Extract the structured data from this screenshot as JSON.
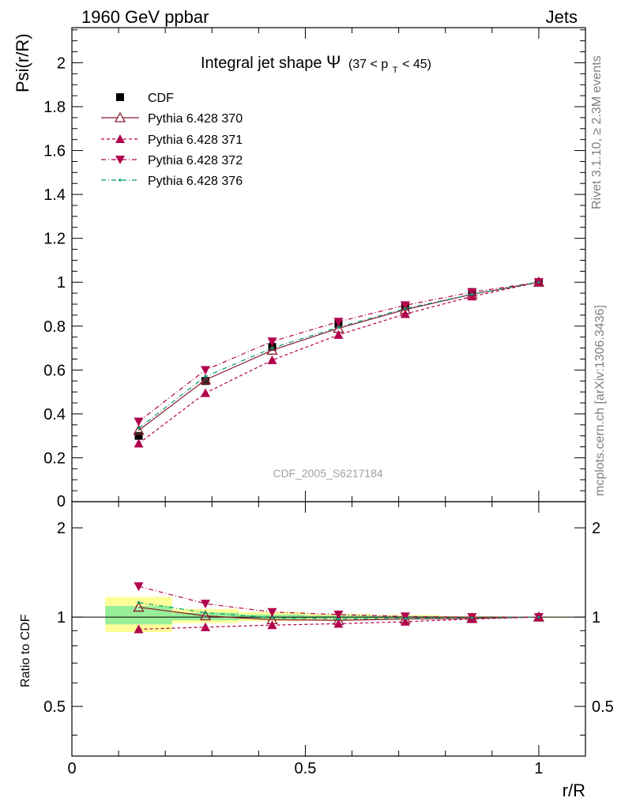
{
  "header": {
    "left": "1960 GeV ppbar",
    "right": "Jets"
  },
  "side": {
    "rivet": "Rivet 3.1.10, ≥ 2.3M events",
    "mcplots": "mcplots.cern.ch [arXiv:1306.3436]"
  },
  "chart_data": [
    {
      "type": "line",
      "title_main": "Integral jet shape",
      "title_symbol": "Ψ",
      "title_cut": "(37 < p",
      "title_cut_sub": "T",
      "title_cut_end": " < 45)",
      "ylabel": "Psi(r/R)",
      "watermark": "CDF_2005_S6217184",
      "xlim": [
        0,
        1.1
      ],
      "ylim": [
        0,
        2.16
      ],
      "yticks": [
        0.2,
        0.4,
        0.6,
        0.8,
        1,
        1.2,
        1.4,
        1.6,
        1.8,
        2
      ],
      "ytick_labels": [
        "0.2",
        "0.4",
        "0.6",
        "0.8",
        "1",
        "1.2",
        "1.4",
        "1.6",
        "1.8",
        "2"
      ],
      "bottom_tick_label": "0",
      "x": [
        0.143,
        0.286,
        0.429,
        0.571,
        0.714,
        0.857,
        1.0
      ],
      "series": [
        {
          "name": "CDF",
          "values": [
            0.3,
            0.55,
            0.705,
            0.81,
            0.89,
            0.955,
            1.0
          ],
          "color": "#000000"
        },
        {
          "name": "Pythia 6.428 370",
          "values": [
            0.325,
            0.555,
            0.69,
            0.79,
            0.875,
            0.945,
            1.0
          ],
          "color": "#8b1a2b"
        },
        {
          "name": "Pythia 6.428 371",
          "values": [
            0.265,
            0.495,
            0.645,
            0.76,
            0.855,
            0.935,
            1.0
          ],
          "color": "#b3004d"
        },
        {
          "name": "Pythia 6.428 372",
          "values": [
            0.365,
            0.6,
            0.73,
            0.82,
            0.895,
            0.955,
            1.0
          ],
          "color": "#b3004d"
        },
        {
          "name": "Pythia 6.428 376",
          "values": [
            0.335,
            0.57,
            0.7,
            0.795,
            0.88,
            0.945,
            1.0
          ],
          "color": "#009e73"
        }
      ]
    },
    {
      "type": "line",
      "ylabel": "Ratio to CDF",
      "xlabel": "r/R",
      "xlim": [
        0,
        1.1
      ],
      "yscale": "log",
      "ylim": [
        0.34,
        2.45
      ],
      "yticks": [
        0.5,
        1,
        2
      ],
      "ytick_labels": [
        "0.5",
        "1",
        "2"
      ],
      "xticks": [
        0,
        0.5,
        1
      ],
      "xtick_labels": [
        "0",
        "0.5",
        "1"
      ],
      "x": [
        0.143,
        0.286,
        0.429,
        0.571,
        0.714,
        0.857,
        1.0
      ],
      "uncertainty_bins": [
        {
          "x": [
            0.0714,
            0.2143
          ],
          "stat_band": [
            0.945,
            1.09
          ],
          "total_band": [
            0.89,
            1.17
          ]
        },
        {
          "x": [
            0.2143,
            0.3571
          ],
          "stat_band": [
            0.975,
            1.035
          ],
          "total_band": [
            0.955,
            1.065
          ]
        },
        {
          "x": [
            0.3571,
            0.5
          ],
          "stat_band": [
            0.985,
            1.02
          ],
          "total_band": [
            0.97,
            1.04
          ]
        },
        {
          "x": [
            0.5,
            0.6429
          ],
          "stat_band": [
            0.99,
            1.012
          ],
          "total_band": [
            0.978,
            1.025
          ]
        },
        {
          "x": [
            0.6429,
            0.7857
          ],
          "stat_band": [
            0.993,
            1.008
          ],
          "total_band": [
            0.985,
            1.016
          ]
        },
        {
          "x": [
            0.7857,
            0.9286
          ],
          "stat_band": [
            0.996,
            1.004
          ],
          "total_band": [
            0.992,
            1.008
          ]
        },
        {
          "x": [
            0.9286,
            1.0714
          ],
          "stat_band": [
            0.998,
            1.002
          ],
          "total_band": [
            0.996,
            1.004
          ]
        }
      ],
      "series": [
        {
          "name": "Pythia 6.428 370",
          "values": [
            1.08,
            1.01,
            0.98,
            0.975,
            0.985,
            0.99,
            1.0
          ],
          "color": "#8b1a2b"
        },
        {
          "name": "Pythia 6.428 371",
          "values": [
            0.91,
            0.925,
            0.94,
            0.95,
            0.965,
            0.985,
            1.0
          ],
          "color": "#b3004d"
        },
        {
          "name": "Pythia 6.428 372",
          "values": [
            1.27,
            1.11,
            1.04,
            1.02,
            1.005,
            1.0,
            1.0
          ],
          "color": "#b3004d"
        },
        {
          "name": "Pythia 6.428 376",
          "values": [
            1.12,
            1.035,
            0.995,
            0.985,
            0.99,
            0.995,
            1.0
          ],
          "color": "#009e73"
        }
      ]
    }
  ]
}
